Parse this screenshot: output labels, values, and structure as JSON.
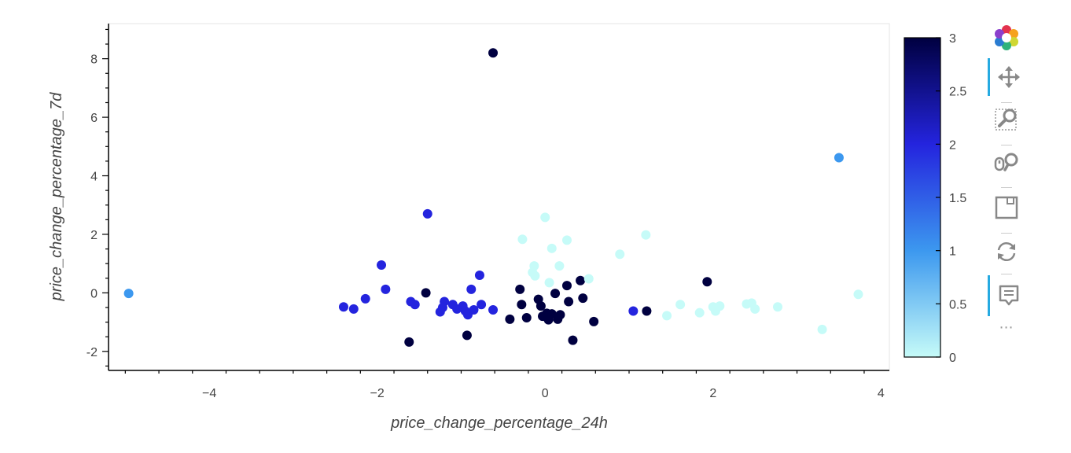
{
  "chart_data": {
    "type": "scatter",
    "xlabel": "price_change_percentage_24h",
    "ylabel": "price_change_percentage_7d",
    "xlim": [
      -5.2,
      4.1
    ],
    "ylim": [
      -2.65,
      9.2
    ],
    "x_ticks": [
      -4,
      -2,
      0,
      2,
      4
    ],
    "x_tick_labels": [
      "−4",
      "−2",
      "0",
      "2",
      "4"
    ],
    "y_ticks": [
      -2,
      0,
      2,
      4,
      6,
      8
    ],
    "y_tick_labels": [
      "-2",
      "0",
      "2",
      "4",
      "6",
      "8"
    ],
    "grid": false,
    "color_by": "cluster",
    "colorbar": {
      "range": [
        0,
        3
      ],
      "ticks": [
        0,
        0.5,
        1,
        1.5,
        2,
        2.5,
        3
      ],
      "tick_labels": [
        "0",
        "0.5",
        "1",
        "1.5",
        "2",
        "2.5",
        "3"
      ],
      "colors": [
        "#c6fbf8",
        "#3c98ef",
        "#2424de",
        "#000040"
      ]
    },
    "points": [
      {
        "x": -4.96,
        "y": -0.02,
        "c": 1
      },
      {
        "x": 3.5,
        "y": 4.62,
        "c": 1
      },
      {
        "x": -1.95,
        "y": 0.95,
        "c": 2
      },
      {
        "x": -1.9,
        "y": 0.12,
        "c": 2
      },
      {
        "x": -2.14,
        "y": -0.2,
        "c": 2
      },
      {
        "x": -2.28,
        "y": -0.55,
        "c": 2
      },
      {
        "x": -2.4,
        "y": -0.48,
        "c": 2
      },
      {
        "x": -1.4,
        "y": 2.7,
        "c": 2
      },
      {
        "x": -1.6,
        "y": -0.3,
        "c": 2
      },
      {
        "x": -1.55,
        "y": -0.4,
        "c": 2
      },
      {
        "x": -1.2,
        "y": -0.3,
        "c": 2
      },
      {
        "x": -1.22,
        "y": -0.5,
        "c": 2
      },
      {
        "x": -1.25,
        "y": -0.65,
        "c": 2
      },
      {
        "x": -1.1,
        "y": -0.4,
        "c": 2
      },
      {
        "x": -1.05,
        "y": -0.55,
        "c": 2
      },
      {
        "x": -0.98,
        "y": -0.45,
        "c": 2
      },
      {
        "x": -0.95,
        "y": -0.62,
        "c": 2
      },
      {
        "x": -0.92,
        "y": -0.75,
        "c": 2
      },
      {
        "x": -0.88,
        "y": 0.12,
        "c": 2
      },
      {
        "x": -0.85,
        "y": -0.58,
        "c": 2
      },
      {
        "x": -0.78,
        "y": 0.6,
        "c": 2
      },
      {
        "x": -0.76,
        "y": -0.4,
        "c": 2
      },
      {
        "x": -0.62,
        "y": -0.58,
        "c": 2
      },
      {
        "x": 1.05,
        "y": -0.62,
        "c": 2
      },
      {
        "x": -0.62,
        "y": 8.2,
        "c": 3
      },
      {
        "x": -1.42,
        "y": 0.0,
        "c": 3
      },
      {
        "x": -1.62,
        "y": -1.68,
        "c": 3
      },
      {
        "x": -0.93,
        "y": -1.45,
        "c": 3
      },
      {
        "x": -0.42,
        "y": -0.9,
        "c": 3
      },
      {
        "x": -0.3,
        "y": 0.12,
        "c": 3
      },
      {
        "x": -0.28,
        "y": -0.4,
        "c": 3
      },
      {
        "x": -0.22,
        "y": -0.85,
        "c": 3
      },
      {
        "x": -0.08,
        "y": -0.22,
        "c": 3
      },
      {
        "x": -0.05,
        "y": -0.45,
        "c": 3
      },
      {
        "x": -0.03,
        "y": -0.8,
        "c": 3
      },
      {
        "x": 0.02,
        "y": -0.7,
        "c": 3
      },
      {
        "x": 0.04,
        "y": -0.92,
        "c": 3
      },
      {
        "x": 0.08,
        "y": -0.72,
        "c": 3
      },
      {
        "x": 0.12,
        "y": -0.02,
        "c": 3
      },
      {
        "x": 0.15,
        "y": -0.9,
        "c": 3
      },
      {
        "x": 0.18,
        "y": -0.75,
        "c": 3
      },
      {
        "x": 0.26,
        "y": 0.25,
        "c": 3
      },
      {
        "x": 0.28,
        "y": -0.3,
        "c": 3
      },
      {
        "x": 0.33,
        "y": -1.62,
        "c": 3
      },
      {
        "x": 0.42,
        "y": 0.42,
        "c": 3
      },
      {
        "x": 0.45,
        "y": -0.18,
        "c": 3
      },
      {
        "x": 0.58,
        "y": -0.98,
        "c": 3
      },
      {
        "x": 1.21,
        "y": -0.62,
        "c": 3
      },
      {
        "x": 1.93,
        "y": 0.38,
        "c": 3
      },
      {
        "x": 0.0,
        "y": 2.58,
        "c": 0
      },
      {
        "x": -0.27,
        "y": 1.83,
        "c": 0
      },
      {
        "x": -0.13,
        "y": 0.92,
        "c": 0
      },
      {
        "x": -0.15,
        "y": 0.7,
        "c": 0
      },
      {
        "x": -0.12,
        "y": 0.58,
        "c": 0
      },
      {
        "x": 0.08,
        "y": 1.52,
        "c": 0
      },
      {
        "x": 0.17,
        "y": 0.92,
        "c": 0
      },
      {
        "x": 0.05,
        "y": 0.35,
        "c": 0
      },
      {
        "x": 0.26,
        "y": 1.8,
        "c": 0
      },
      {
        "x": 0.52,
        "y": 0.48,
        "c": 0
      },
      {
        "x": 0.89,
        "y": 1.32,
        "c": 0
      },
      {
        "x": 1.2,
        "y": 1.98,
        "c": 0
      },
      {
        "x": 1.45,
        "y": -0.78,
        "c": 0
      },
      {
        "x": 1.61,
        "y": -0.4,
        "c": 0
      },
      {
        "x": 1.84,
        "y": -0.68,
        "c": 0
      },
      {
        "x": 2.0,
        "y": -0.48,
        "c": 0
      },
      {
        "x": 2.03,
        "y": -0.62,
        "c": 0
      },
      {
        "x": 2.08,
        "y": -0.45,
        "c": 0
      },
      {
        "x": 2.4,
        "y": -0.38,
        "c": 0
      },
      {
        "x": 2.46,
        "y": -0.35,
        "c": 0
      },
      {
        "x": 2.5,
        "y": -0.55,
        "c": 0
      },
      {
        "x": 2.77,
        "y": -0.48,
        "c": 0
      },
      {
        "x": 3.3,
        "y": -1.25,
        "c": 0
      },
      {
        "x": 3.73,
        "y": -0.05,
        "c": 0
      }
    ]
  },
  "toolbar": {
    "tools": [
      {
        "name": "bokeh-logo-icon",
        "active": false,
        "interactable": true
      },
      {
        "name": "pan-tool-icon",
        "active": true,
        "interactable": true
      },
      {
        "name": "box-zoom-tool-icon",
        "active": false,
        "interactable": true
      },
      {
        "name": "wheel-zoom-tool-icon",
        "active": false,
        "interactable": true
      },
      {
        "name": "save-tool-icon",
        "active": false,
        "interactable": true
      },
      {
        "name": "reset-tool-icon",
        "active": false,
        "interactable": true
      },
      {
        "name": "hover-tool-icon",
        "active": true,
        "interactable": true
      }
    ],
    "more_label": "⋯"
  }
}
